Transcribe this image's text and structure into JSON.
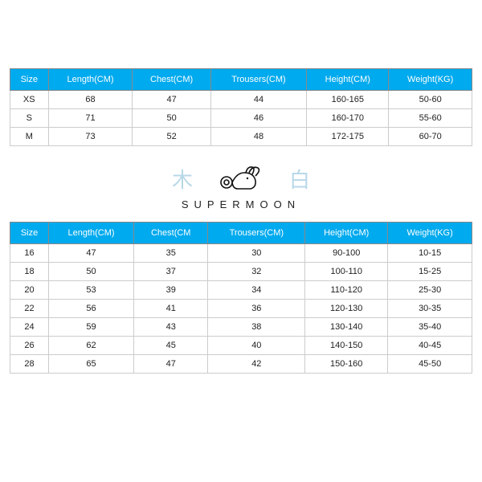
{
  "table1": {
    "columns": [
      "Size",
      "Length(CM)",
      "Chest(CM)",
      "Trousers(CM)",
      "Height(CM)",
      "Weight(KG)"
    ],
    "rows": [
      [
        "XS",
        "68",
        "47",
        "44",
        "160-165",
        "50-60"
      ],
      [
        "S",
        "71",
        "50",
        "46",
        "160-170",
        "55-60"
      ],
      [
        "M",
        "73",
        "52",
        "48",
        "172-175",
        "60-70"
      ]
    ],
    "header_bg": "#00aaee",
    "header_fg": "#ffffff",
    "border_color": "#cccccc",
    "header_border": "#888888",
    "fontsize": 11
  },
  "logo": {
    "left_char": "木",
    "right_char": "白",
    "brand": "SUPERMOON",
    "char_color": "#b8d8e8",
    "icon_stroke": "#111111",
    "brand_color": "#222222"
  },
  "table2": {
    "columns": [
      "Size",
      "Length(CM)",
      "Chest(CM",
      "Trousers(CM)",
      "Height(CM)",
      "Weight(KG)"
    ],
    "rows": [
      [
        "16",
        "47",
        "35",
        "30",
        "90-100",
        "10-15"
      ],
      [
        "18",
        "50",
        "37",
        "32",
        "100-110",
        "15-25"
      ],
      [
        "20",
        "53",
        "39",
        "34",
        "110-120",
        "25-30"
      ],
      [
        "22",
        "56",
        "41",
        "36",
        "120-130",
        "30-35"
      ],
      [
        "24",
        "59",
        "43",
        "38",
        "130-140",
        "35-40"
      ],
      [
        "26",
        "62",
        "45",
        "40",
        "140-150",
        "40-45"
      ],
      [
        "28",
        "65",
        "47",
        "42",
        "150-160",
        "45-50"
      ]
    ],
    "header_bg": "#00aaee",
    "header_fg": "#ffffff",
    "border_color": "#cccccc",
    "header_border": "#888888",
    "fontsize": 11
  },
  "background_color": "#ffffff"
}
